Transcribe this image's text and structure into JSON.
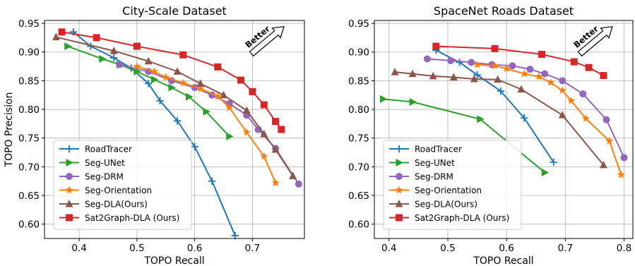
{
  "chart_data": [
    {
      "type": "line",
      "title": "City-Scale Dataset",
      "xlabel": "TOPO Recall",
      "ylabel": "TOPO Precision",
      "xlim": [
        0.34,
        0.79
      ],
      "ylim": [
        0.575,
        0.955
      ],
      "xticks": [
        0.4,
        0.5,
        0.6,
        0.7
      ],
      "xtick_labels": [
        "0.4",
        "0.5",
        "0.6",
        "0.7"
      ],
      "yticks": [
        0.6,
        0.65,
        0.7,
        0.75,
        0.8,
        0.85,
        0.9,
        0.95
      ],
      "ytick_labels": [
        "0.60",
        "0.65",
        "0.70",
        "0.75",
        "0.80",
        "0.85",
        "0.90",
        "0.95"
      ],
      "grid": true,
      "legend_position": "lower-left",
      "annotation": "Better",
      "series": [
        {
          "name": "RoadTracer",
          "color": "#1f77b4",
          "marker": "plus",
          "x": [
            0.39,
            0.42,
            0.46,
            0.49,
            0.52,
            0.54,
            0.57,
            0.6,
            0.63,
            0.67
          ],
          "y": [
            0.935,
            0.91,
            0.89,
            0.872,
            0.845,
            0.815,
            0.78,
            0.735,
            0.675,
            0.58
          ]
        },
        {
          "name": "Seg-UNet",
          "color": "#2ca02c",
          "marker": "triangle-right",
          "x": [
            0.38,
            0.44,
            0.47,
            0.5,
            0.53,
            0.56,
            0.59,
            0.62,
            0.66
          ],
          "y": [
            0.91,
            0.888,
            0.878,
            0.866,
            0.852,
            0.838,
            0.822,
            0.796,
            0.753
          ]
        },
        {
          "name": "Seg-DRM",
          "color": "#9467bd",
          "marker": "circle",
          "x": [
            0.47,
            0.52,
            0.56,
            0.6,
            0.63,
            0.66,
            0.69,
            0.71,
            0.74,
            0.78
          ],
          "y": [
            0.878,
            0.866,
            0.85,
            0.838,
            0.825,
            0.81,
            0.79,
            0.765,
            0.732,
            0.67
          ]
        },
        {
          "name": "Seg-Orientation",
          "color": "#ff7f0e",
          "marker": "star",
          "x": [
            0.5,
            0.53,
            0.55,
            0.58,
            0.61,
            0.64,
            0.66,
            0.69,
            0.72,
            0.74
          ],
          "y": [
            0.875,
            0.866,
            0.856,
            0.846,
            0.836,
            0.823,
            0.803,
            0.76,
            0.718,
            0.672
          ]
        },
        {
          "name": "Seg-DLA(Ours)",
          "color": "#8c564b",
          "marker": "triangle-up",
          "x": [
            0.36,
            0.46,
            0.52,
            0.57,
            0.61,
            0.65,
            0.69,
            0.72,
            0.74,
            0.77
          ],
          "y": [
            0.926,
            0.902,
            0.884,
            0.866,
            0.845,
            0.825,
            0.798,
            0.757,
            0.73,
            0.684
          ]
        },
        {
          "name": "Sat2Graph-DLA (Ours)",
          "color": "#d62728",
          "marker": "square",
          "x": [
            0.37,
            0.43,
            0.5,
            0.58,
            0.64,
            0.68,
            0.7,
            0.72,
            0.74,
            0.75
          ],
          "y": [
            0.935,
            0.925,
            0.91,
            0.895,
            0.874,
            0.851,
            0.831,
            0.808,
            0.779,
            0.765
          ]
        }
      ]
    },
    {
      "type": "line",
      "title": "SpaceNet Roads Dataset",
      "xlabel": "TOPO Recall",
      "ylabel": "",
      "xlim": [
        0.375,
        0.815
      ],
      "ylim": [
        0.575,
        0.955
      ],
      "xticks": [
        0.4,
        0.5,
        0.6,
        0.7,
        0.8
      ],
      "xtick_labels": [
        "0.4",
        "0.5",
        "0.6",
        "0.7",
        "0.8"
      ],
      "yticks": [
        0.6,
        0.65,
        0.7,
        0.75,
        0.8,
        0.85,
        0.9,
        0.95
      ],
      "ytick_labels": [
        "0.60",
        "0.65",
        "0.70",
        "0.75",
        "0.80",
        "0.85",
        "0.90",
        "0.95"
      ],
      "grid": true,
      "legend_position": "lower-left",
      "annotation": "Better",
      "series": [
        {
          "name": "RoadTracer",
          "color": "#1f77b4",
          "marker": "plus",
          "x": [
            0.48,
            0.52,
            0.55,
            0.59,
            0.63,
            0.68
          ],
          "y": [
            0.903,
            0.882,
            0.86,
            0.832,
            0.785,
            0.708
          ]
        },
        {
          "name": "Seg-UNet",
          "color": "#2ca02c",
          "marker": "triangle-right",
          "x": [
            0.39,
            0.44,
            0.555,
            0.665
          ],
          "y": [
            0.818,
            0.813,
            0.783,
            0.69
          ]
        },
        {
          "name": "Seg-DRM",
          "color": "#9467bd",
          "marker": "circle",
          "x": [
            0.465,
            0.505,
            0.54,
            0.575,
            0.61,
            0.64,
            0.665,
            0.695,
            0.73,
            0.77,
            0.8
          ],
          "y": [
            0.888,
            0.885,
            0.882,
            0.878,
            0.876,
            0.87,
            0.862,
            0.85,
            0.827,
            0.782,
            0.716
          ]
        },
        {
          "name": "Seg-Orientation",
          "color": "#ff7f0e",
          "marker": "star",
          "x": [
            0.55,
            0.58,
            0.6,
            0.63,
            0.655,
            0.675,
            0.695,
            0.71,
            0.735,
            0.775,
            0.795
          ],
          "y": [
            0.878,
            0.876,
            0.871,
            0.862,
            0.857,
            0.847,
            0.833,
            0.815,
            0.784,
            0.745,
            0.686
          ]
        },
        {
          "name": "Seg-DLA(Ours)",
          "color": "#8c564b",
          "marker": "triangle-up",
          "x": [
            0.41,
            0.44,
            0.475,
            0.51,
            0.545,
            0.585,
            0.625,
            0.695,
            0.765
          ],
          "y": [
            0.865,
            0.862,
            0.858,
            0.856,
            0.853,
            0.852,
            0.835,
            0.79,
            0.703
          ]
        },
        {
          "name": "Sat2Graph-DLA (Ours)",
          "color": "#d62728",
          "marker": "square",
          "x": [
            0.48,
            0.58,
            0.66,
            0.715,
            0.74,
            0.765
          ],
          "y": [
            0.91,
            0.906,
            0.896,
            0.883,
            0.873,
            0.859
          ]
        }
      ]
    }
  ]
}
